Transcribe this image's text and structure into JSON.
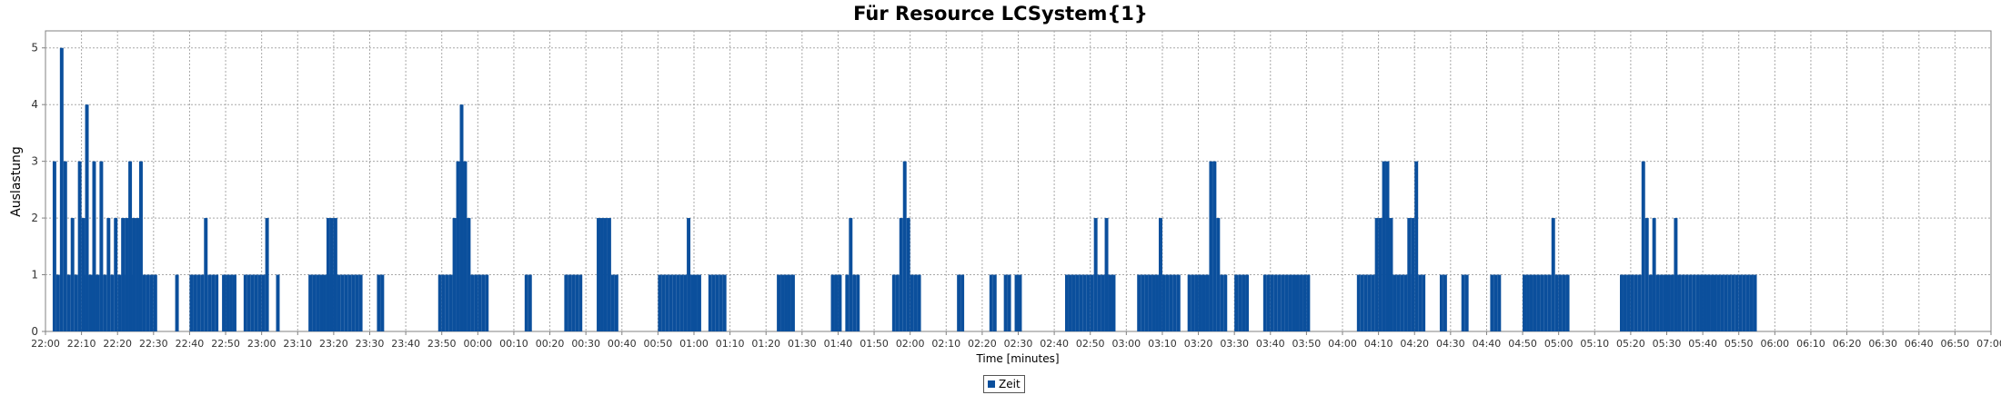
{
  "colors": {
    "bar": "#0b4f9c",
    "grid": "#a8a8a8",
    "axis": "#808080",
    "text": "#333333"
  },
  "chart_data": {
    "type": "bar",
    "title": "Für Resource LCSystem{1}",
    "xlabel": "Time [minutes]",
    "ylabel": "Auslastung",
    "ylim": [
      0,
      5.3
    ],
    "yticks": [
      "0",
      "1",
      "2",
      "3",
      "4",
      "5"
    ],
    "xlim": [
      0,
      540
    ],
    "xtick_labels": [
      "22:00",
      "22:10",
      "22:20",
      "22:30",
      "22:40",
      "22:50",
      "23:00",
      "23:10",
      "23:20",
      "23:30",
      "23:40",
      "23:50",
      "00:00",
      "00:10",
      "00:20",
      "00:30",
      "00:40",
      "00:50",
      "01:00",
      "01:10",
      "01:20",
      "01:30",
      "01:40",
      "01:50",
      "02:00",
      "02:10",
      "02:20",
      "02:30",
      "02:40",
      "02:50",
      "03:00",
      "03:10",
      "03:20",
      "03:30",
      "03:40",
      "03:50",
      "04:00",
      "04:10",
      "04:20",
      "04:30",
      "04:40",
      "04:50",
      "05:00",
      "05:10",
      "05:20",
      "05:30",
      "05:40",
      "05:50",
      "06:00",
      "06:10",
      "06:20",
      "06:30",
      "06:40",
      "06:50",
      "07:00"
    ],
    "grid": true,
    "legend": "bottom-center",
    "series": [
      {
        "name": "Zeit",
        "x_unit": "minutes after 22:00",
        "bar_width": 1,
        "points": [
          [
            2,
            3
          ],
          [
            3,
            1
          ],
          [
            4,
            5
          ],
          [
            5,
            3
          ],
          [
            6,
            1
          ],
          [
            7,
            2
          ],
          [
            8,
            1
          ],
          [
            9,
            3
          ],
          [
            10,
            2
          ],
          [
            11,
            1
          ],
          [
            12,
            1
          ],
          [
            13,
            2
          ],
          [
            14,
            1
          ],
          [
            15,
            3
          ],
          [
            16,
            1
          ],
          [
            17,
            2
          ],
          [
            18,
            1
          ],
          [
            19,
            2
          ],
          [
            20,
            1
          ],
          [
            21,
            1
          ],
          [
            22,
            1
          ],
          [
            23,
            3
          ],
          [
            24,
            1
          ],
          [
            25,
            2
          ],
          [
            26,
            3
          ],
          [
            27,
            1
          ],
          [
            24,
            2
          ],
          [
            23,
            2
          ],
          [
            22,
            2
          ],
          [
            21,
            2
          ],
          [
            11,
            4
          ],
          [
            13,
            3
          ],
          [
            28,
            1
          ],
          [
            29,
            1
          ],
          [
            30,
            1
          ],
          [
            36,
            1
          ],
          [
            40,
            1
          ],
          [
            41,
            1
          ],
          [
            42,
            1
          ],
          [
            43,
            1
          ],
          [
            44,
            2
          ],
          [
            45,
            1
          ],
          [
            46,
            1
          ],
          [
            47,
            1
          ],
          [
            49,
            1
          ],
          [
            50,
            1
          ],
          [
            51,
            1
          ],
          [
            52,
            1
          ],
          [
            55,
            1
          ],
          [
            56,
            1
          ],
          [
            57,
            1
          ],
          [
            58,
            1
          ],
          [
            59,
            1
          ],
          [
            60,
            1
          ],
          [
            61,
            2
          ],
          [
            64,
            1
          ],
          [
            73,
            1
          ],
          [
            74,
            1
          ],
          [
            75,
            1
          ],
          [
            76,
            1
          ],
          [
            77,
            1
          ],
          [
            78,
            1
          ],
          [
            79,
            1
          ],
          [
            80,
            1
          ],
          [
            78,
            2
          ],
          [
            79,
            2
          ],
          [
            80,
            2
          ],
          [
            81,
            1
          ],
          [
            82,
            1
          ],
          [
            83,
            1
          ],
          [
            84,
            1
          ],
          [
            85,
            1
          ],
          [
            86,
            1
          ],
          [
            87,
            1
          ],
          [
            92,
            1
          ],
          [
            93,
            1
          ],
          [
            109,
            1
          ],
          [
            110,
            1
          ],
          [
            111,
            1
          ],
          [
            112,
            1
          ],
          [
            113,
            2
          ],
          [
            114,
            3
          ],
          [
            115,
            4
          ],
          [
            116,
            3
          ],
          [
            117,
            2
          ],
          [
            118,
            1
          ],
          [
            119,
            1
          ],
          [
            120,
            1
          ],
          [
            121,
            1
          ],
          [
            122,
            1
          ],
          [
            133,
            1
          ],
          [
            134,
            1
          ],
          [
            144,
            1
          ],
          [
            145,
            1
          ],
          [
            146,
            1
          ],
          [
            147,
            1
          ],
          [
            148,
            1
          ],
          [
            153,
            2
          ],
          [
            154,
            2
          ],
          [
            155,
            2
          ],
          [
            156,
            2
          ],
          [
            157,
            1
          ],
          [
            158,
            1
          ],
          [
            170,
            1
          ],
          [
            171,
            1
          ],
          [
            172,
            1
          ],
          [
            173,
            1
          ],
          [
            174,
            1
          ],
          [
            175,
            1
          ],
          [
            176,
            1
          ],
          [
            177,
            1
          ],
          [
            178,
            2
          ],
          [
            179,
            1
          ],
          [
            180,
            1
          ],
          [
            181,
            1
          ],
          [
            184,
            1
          ],
          [
            185,
            1
          ],
          [
            186,
            1
          ],
          [
            187,
            1
          ],
          [
            188,
            1
          ],
          [
            203,
            1
          ],
          [
            204,
            1
          ],
          [
            205,
            1
          ],
          [
            206,
            1
          ],
          [
            207,
            1
          ],
          [
            218,
            1
          ],
          [
            219,
            1
          ],
          [
            220,
            1
          ],
          [
            222,
            1
          ],
          [
            223,
            2
          ],
          [
            224,
            1
          ],
          [
            225,
            1
          ],
          [
            235,
            1
          ],
          [
            236,
            1
          ],
          [
            237,
            2
          ],
          [
            238,
            3
          ],
          [
            239,
            2
          ],
          [
            240,
            1
          ],
          [
            241,
            1
          ],
          [
            242,
            1
          ],
          [
            253,
            1
          ],
          [
            254,
            1
          ],
          [
            262,
            1
          ],
          [
            263,
            1
          ],
          [
            266,
            1
          ],
          [
            267,
            1
          ],
          [
            269,
            1
          ],
          [
            270,
            1
          ],
          [
            283,
            1
          ],
          [
            284,
            1
          ],
          [
            285,
            1
          ],
          [
            286,
            1
          ],
          [
            287,
            1
          ],
          [
            288,
            1
          ],
          [
            289,
            1
          ],
          [
            290,
            1
          ],
          [
            291,
            2
          ],
          [
            292,
            1
          ],
          [
            293,
            1
          ],
          [
            294,
            2
          ],
          [
            295,
            1
          ],
          [
            296,
            1
          ],
          [
            303,
            1
          ],
          [
            304,
            1
          ],
          [
            305,
            1
          ],
          [
            306,
            1
          ],
          [
            307,
            1
          ],
          [
            308,
            1
          ],
          [
            309,
            2
          ],
          [
            310,
            1
          ],
          [
            311,
            1
          ],
          [
            312,
            1
          ],
          [
            313,
            1
          ],
          [
            314,
            1
          ],
          [
            317,
            1
          ],
          [
            318,
            1
          ],
          [
            319,
            1
          ],
          [
            320,
            1
          ],
          [
            321,
            1
          ],
          [
            322,
            1
          ],
          [
            323,
            3
          ],
          [
            324,
            3
          ],
          [
            325,
            2
          ],
          [
            326,
            1
          ],
          [
            327,
            1
          ],
          [
            330,
            1
          ],
          [
            331,
            1
          ],
          [
            332,
            1
          ],
          [
            333,
            1
          ],
          [
            338,
            1
          ],
          [
            339,
            1
          ],
          [
            340,
            1
          ],
          [
            341,
            1
          ],
          [
            342,
            1
          ],
          [
            343,
            1
          ],
          [
            344,
            1
          ],
          [
            345,
            1
          ],
          [
            346,
            1
          ],
          [
            347,
            1
          ],
          [
            348,
            1
          ],
          [
            349,
            1
          ],
          [
            350,
            1
          ],
          [
            364,
            1
          ],
          [
            365,
            1
          ],
          [
            366,
            1
          ],
          [
            367,
            1
          ],
          [
            368,
            1
          ],
          [
            369,
            2
          ],
          [
            370,
            2
          ],
          [
            371,
            3
          ],
          [
            372,
            3
          ],
          [
            373,
            2
          ],
          [
            374,
            1
          ],
          [
            375,
            1
          ],
          [
            376,
            1
          ],
          [
            377,
            1
          ],
          [
            378,
            1
          ],
          [
            378,
            2
          ],
          [
            379,
            2
          ],
          [
            380,
            3
          ],
          [
            381,
            1
          ],
          [
            382,
            1
          ],
          [
            387,
            1
          ],
          [
            388,
            1
          ],
          [
            393,
            1
          ],
          [
            394,
            1
          ],
          [
            401,
            1
          ],
          [
            402,
            1
          ],
          [
            403,
            1
          ],
          [
            410,
            1
          ],
          [
            411,
            1
          ],
          [
            412,
            1
          ],
          [
            413,
            1
          ],
          [
            414,
            1
          ],
          [
            415,
            1
          ],
          [
            416,
            1
          ],
          [
            417,
            1
          ],
          [
            418,
            2
          ],
          [
            419,
            1
          ],
          [
            420,
            1
          ],
          [
            421,
            1
          ],
          [
            422,
            1
          ],
          [
            437,
            1
          ],
          [
            438,
            1
          ],
          [
            439,
            1
          ],
          [
            440,
            1
          ],
          [
            441,
            1
          ],
          [
            442,
            1
          ],
          [
            443,
            3
          ],
          [
            444,
            2
          ],
          [
            445,
            1
          ],
          [
            446,
            1
          ],
          [
            447,
            1
          ],
          [
            448,
            1
          ],
          [
            449,
            1
          ],
          [
            450,
            1
          ],
          [
            451,
            1
          ],
          [
            452,
            1
          ],
          [
            453,
            1
          ],
          [
            454,
            1
          ],
          [
            455,
            1
          ],
          [
            456,
            1
          ],
          [
            457,
            1
          ],
          [
            458,
            1
          ],
          [
            459,
            1
          ],
          [
            460,
            1
          ],
          [
            461,
            1
          ],
          [
            446,
            2
          ],
          [
            452,
            2
          ],
          [
            459,
            1
          ],
          [
            460,
            1
          ],
          [
            461,
            1
          ],
          [
            462,
            1
          ],
          [
            463,
            1
          ],
          [
            464,
            1
          ],
          [
            465,
            1
          ],
          [
            466,
            1
          ],
          [
            467,
            1
          ],
          [
            468,
            1
          ],
          [
            469,
            1
          ],
          [
            470,
            1
          ],
          [
            471,
            1
          ],
          [
            472,
            1
          ],
          [
            473,
            1
          ],
          [
            474,
            1
          ]
        ]
      }
    ]
  }
}
